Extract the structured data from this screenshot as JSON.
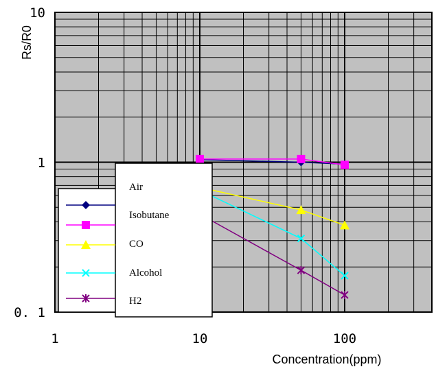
{
  "chart_data": {
    "type": "line",
    "xscale": "log",
    "yscale": "log",
    "xlim": [
      1,
      400
    ],
    "ylim": [
      0.1,
      10
    ],
    "xticks": [
      {
        "value": 1,
        "label": "1"
      },
      {
        "value": 10,
        "label": "10"
      },
      {
        "value": 100,
        "label": "100"
      }
    ],
    "yticks": [
      {
        "value": 0.1,
        "label": "0. 1"
      },
      {
        "value": 1,
        "label": "1"
      },
      {
        "value": 10,
        "label": "10"
      }
    ],
    "xlabel": "Concentration(ppm)",
    "ylabel": "Rs/R0",
    "grid": true,
    "legend_position": "left",
    "series": [
      {
        "name": "Air",
        "color": "#000080",
        "marker": "diamond",
        "x": [
          10,
          50,
          100
        ],
        "y": [
          1.04,
          1.0,
          0.97
        ]
      },
      {
        "name": "Isobutane",
        "color": "#ff00ff",
        "marker": "square",
        "x": [
          10,
          50,
          100
        ],
        "y": [
          1.05,
          1.05,
          0.96
        ]
      },
      {
        "name": "CO",
        "color": "#ffff00",
        "marker": "triangle",
        "x": [
          10,
          50,
          100
        ],
        "y": [
          0.68,
          0.48,
          0.38
        ]
      },
      {
        "name": "Alcohol",
        "color": "#00ffff",
        "marker": "x",
        "x": [
          10,
          50,
          100
        ],
        "y": [
          0.65,
          0.31,
          0.175
        ]
      },
      {
        "name": "H2",
        "color": "#800080",
        "marker": "star",
        "x": [
          10,
          50,
          100
        ],
        "y": [
          0.45,
          0.19,
          0.13
        ]
      }
    ]
  }
}
